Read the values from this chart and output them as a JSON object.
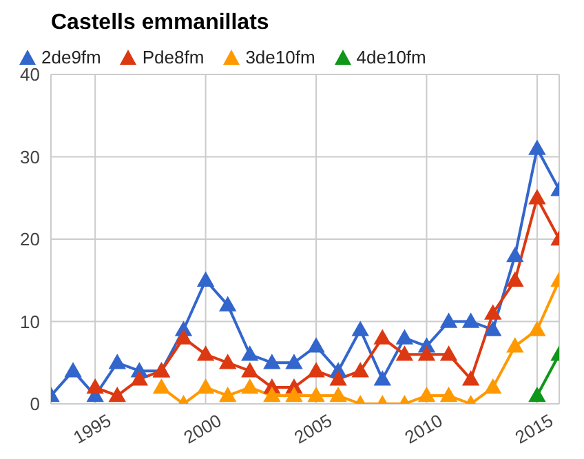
{
  "chart_data": {
    "type": "line",
    "title": "Castells emmanillats",
    "x": [
      1993,
      1994,
      1995,
      1996,
      1997,
      1998,
      1999,
      2000,
      2001,
      2002,
      2003,
      2004,
      2005,
      2006,
      2007,
      2008,
      2009,
      2010,
      2011,
      2012,
      2013,
      2014,
      2015,
      2016
    ],
    "series": [
      {
        "name": "2de9fm",
        "color": "#3366cc",
        "values": [
          1,
          4,
          1,
          5,
          4,
          4,
          9,
          15,
          12,
          6,
          5,
          5,
          7,
          4,
          9,
          3,
          8,
          7,
          10,
          10,
          9,
          18,
          31,
          26
        ]
      },
      {
        "name": "Pde8fm",
        "color": "#dc3912",
        "values": [
          null,
          null,
          2,
          1,
          3,
          4,
          8,
          6,
          5,
          4,
          2,
          2,
          4,
          3,
          4,
          8,
          6,
          6,
          6,
          3,
          11,
          15,
          25,
          20
        ]
      },
      {
        "name": "3de10fm",
        "color": "#ff9900",
        "values": [
          null,
          null,
          null,
          null,
          null,
          2,
          0,
          2,
          1,
          2,
          1,
          1,
          1,
          1,
          0,
          0,
          0,
          1,
          1,
          0,
          2,
          7,
          9,
          15
        ]
      },
      {
        "name": "4de10fm",
        "color": "#109618",
        "values": [
          null,
          null,
          null,
          null,
          null,
          null,
          null,
          null,
          null,
          null,
          null,
          null,
          null,
          null,
          null,
          null,
          null,
          null,
          null,
          null,
          null,
          null,
          1,
          6
        ]
      }
    ],
    "xlim": [
      1993,
      2016
    ],
    "xticks": [
      1995,
      2000,
      2005,
      2010,
      2015
    ],
    "ylim": [
      0,
      40
    ],
    "yticks": [
      0,
      10,
      20,
      30,
      40
    ],
    "grid": true,
    "legend": "top left",
    "marker": "triangle",
    "line_style": "solid"
  }
}
